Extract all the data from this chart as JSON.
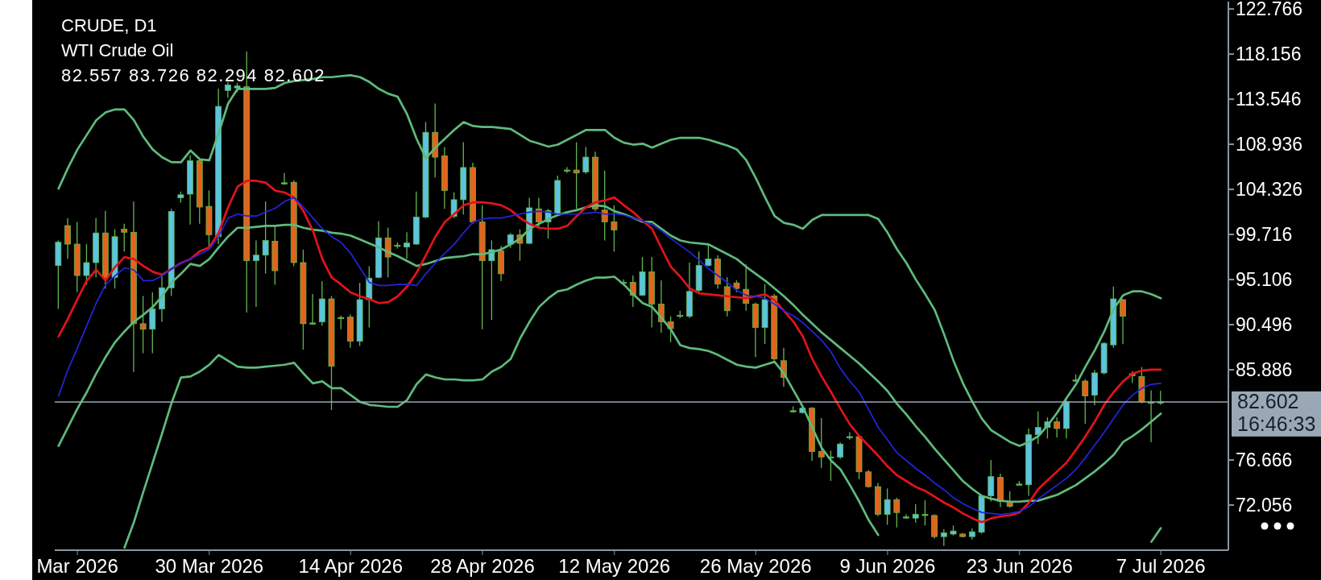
{
  "chart_data": {
    "type": "candlestick",
    "title": "CRUDE, D1",
    "subtitle": "WTI Crude Oil",
    "annotations": [
      "82.557 83.726 82.294 82.602",
      "16:46:33"
    ],
    "categories": [
      null,
      null,
      "Mar 2026",
      null,
      null,
      null,
      null,
      null,
      null,
      null,
      null,
      null,
      null,
      null,
      null,
      null,
      "30 Mar 2026",
      null,
      null,
      null,
      null,
      null,
      null,
      null,
      null,
      null,
      null,
      null,
      null,
      null,
      null,
      "14 Apr 2026",
      null,
      null,
      null,
      null,
      null,
      null,
      null,
      null,
      null,
      null,
      null,
      null,
      null,
      "28 Apr 2026",
      null,
      null,
      null,
      null,
      null,
      null,
      null,
      null,
      null,
      null,
      null,
      null,
      null,
      "12 May 2026",
      null,
      null,
      null,
      null,
      null,
      null,
      null,
      null,
      null,
      null,
      null,
      null,
      null,
      null,
      "26 May 2026",
      null,
      null,
      null,
      null,
      null,
      null,
      null,
      null,
      null,
      null,
      null,
      null,
      null,
      "9 Jun 2026",
      null,
      null,
      null,
      null,
      null,
      null,
      null,
      null,
      null,
      null,
      null,
      null,
      null,
      "23 Jun 2026",
      null,
      null,
      null,
      null,
      null,
      null,
      null,
      null,
      null,
      null,
      null,
      null,
      null,
      null,
      "7 Jul 2026"
    ],
    "ylim": [
      67.44,
      123.52
    ],
    "yticks": [
      72.056,
      76.666,
      85.886,
      90.496,
      95.106,
      99.716,
      104.326,
      108.936,
      113.546,
      118.156,
      122.766
    ],
    "color": "#62b84e",
    "colors": [
      "#5bc4de",
      "#e2641d",
      "#e2641d",
      "#5bc4de",
      "#5bc4de",
      "#e2641d",
      "#5bc4de",
      "#e2641d",
      "#e2641d",
      "#e2641d",
      "#5bc4de",
      "#5bc4de",
      "#5bc4de",
      "#5bc4de",
      "#5bc4de",
      "#e2641d",
      "#e2641d",
      "#5bc4de",
      "#5bc4de",
      "#5bc4de",
      "#e2641d",
      "#5bc4de",
      "#5bc4de",
      "#e2641d",
      "#62b84e",
      "#e2641d",
      "#e2641d",
      "#62b84e",
      "#5bc4de",
      "#e2641d",
      "#62b84e",
      "#e2641d",
      "#5bc4de",
      "#5bc4de",
      "#5bc4de",
      "#e2641d",
      "#62b84e",
      "#5bc4de",
      "#5bc4de",
      "#5bc4de",
      "#e2641d",
      "#e2641d",
      "#5bc4de",
      "#5bc4de",
      "#e2641d",
      "#e2641d",
      "#5bc4de",
      "#e2641d",
      "#5bc4de",
      "#e2641d",
      "#5bc4de",
      "#e2641d",
      "#5bc4de",
      "#5bc4de",
      "#62b84e",
      "#e2641d",
      "#5bc4de",
      "#e2641d",
      "#e2641d",
      "#e2641d",
      "#62b84e",
      "#e2641d",
      "#5bc4de",
      "#e2641d",
      "#e2641d",
      "#e2641d",
      "#62b84e",
      "#5bc4de",
      "#5bc4de",
      "#5bc4de",
      "#e2641d",
      "#e2641d",
      "#e2641d",
      "#e2641d",
      "#e2641d",
      "#5bc4de",
      "#e2641d",
      "#e2641d",
      "#62b84e",
      "#5bc4de",
      "#e2641d",
      "#e2641d",
      "#62b84e",
      "#5bc4de",
      "#62b84e",
      "#e2641d",
      "#e2641d",
      "#e2641d",
      "#5bc4de",
      "#e2641d",
      "#62b84e",
      "#5bc4de",
      "#62b84e",
      "#e2641d",
      "#5bc4de",
      "#5bc4de",
      "#e2641d",
      "#5bc4de",
      "#5bc4de",
      "#5bc4de",
      "#e2641d",
      "#e2641d",
      "#62b84e",
      "#5bc4de",
      "#5bc4de",
      "#5bc4de",
      "#e2641d",
      "#5bc4de",
      "#62b84e",
      "#e2641d",
      "#5bc4de",
      "#5bc4de",
      "#5bc4de",
      "#e2641d",
      "#e2641d",
      "#e2641d",
      "#62b84e",
      "#5bc4de"
    ],
    "ohlc": [
      [
        96.54,
        99.1,
        92.1,
        98.92
      ],
      [
        100.62,
        101.38,
        97.22,
        98.73
      ],
      [
        98.73,
        101.0,
        93.81,
        95.52
      ],
      [
        95.52,
        98.73,
        94.57,
        96.84
      ],
      [
        96.84,
        101.38,
        95.33,
        99.87
      ],
      [
        99.87,
        102.14,
        94.19,
        95.33
      ],
      [
        95.33,
        100.25,
        94.19,
        99.49
      ],
      [
        100.25,
        100.81,
        97.97,
        99.94
      ],
      [
        99.94,
        103.08,
        85.67,
        90.59
      ],
      [
        90.59,
        93.43,
        87.57,
        90.03
      ],
      [
        90.03,
        93.81,
        87.57,
        92.11
      ],
      [
        92.11,
        95.71,
        90.78,
        94.27
      ],
      [
        94.27,
        102.33,
        93.43,
        102.06
      ],
      [
        103.46,
        104.11,
        102.97,
        103.77
      ],
      [
        103.84,
        107.82,
        100.74,
        107.25
      ],
      [
        107.25,
        107.44,
        100.81,
        102.52
      ],
      [
        102.59,
        104.22,
        98.43,
        99.68
      ],
      [
        99.49,
        114.63,
        98.73,
        112.81
      ],
      [
        114.44,
        115.31,
        113.68,
        115.0
      ],
      [
        114.7,
        115.2,
        114.25,
        114.89
      ],
      [
        114.82,
        118.41,
        91.73,
        97.03
      ],
      [
        97.03,
        99.1,
        92.3,
        97.6
      ],
      [
        97.6,
        103.08,
        95.71,
        99.11
      ],
      [
        99.03,
        100.62,
        94.57,
        96.01
      ],
      [
        105.0,
        106.0,
        104.79,
        105.0
      ],
      [
        105.05,
        105.24,
        96.46,
        96.84
      ],
      [
        96.84,
        98.16,
        87.94,
        90.59
      ],
      [
        90.67,
        93.62,
        90.48,
        90.67
      ],
      [
        90.78,
        94.95,
        90.4,
        93.13
      ],
      [
        93.13,
        93.43,
        81.77,
        86.24
      ],
      [
        91.23,
        91.42,
        90.03,
        91.23
      ],
      [
        91.27,
        91.54,
        88.13,
        88.81
      ],
      [
        88.81,
        94.76,
        88.32,
        93.05
      ],
      [
        93.05,
        96.46,
        90.21,
        95.25
      ],
      [
        95.33,
        101.08,
        95.25,
        99.37
      ],
      [
        99.37,
        100.43,
        95.33,
        97.41
      ],
      [
        98.62,
        98.92,
        98.28,
        98.62
      ],
      [
        98.43,
        99.94,
        97.22,
        98.84
      ],
      [
        98.73,
        104.1,
        98.65,
        101.49
      ],
      [
        101.49,
        111.22,
        101.38,
        110.16
      ],
      [
        110.16,
        113.11,
        105.54,
        107.62
      ],
      [
        107.74,
        108.65,
        102.33,
        104.22
      ],
      [
        101.57,
        104.03,
        101.38,
        103.27
      ],
      [
        103.27,
        109.14,
        101.76,
        106.56
      ],
      [
        106.56,
        107.05,
        100.81,
        101.0
      ],
      [
        101.0,
        102.7,
        90.02,
        97.03
      ],
      [
        97.03,
        99.11,
        90.97,
        98.16
      ],
      [
        98.05,
        98.54,
        94.95,
        95.7
      ],
      [
        98.73,
        99.87,
        98.35,
        99.68
      ],
      [
        99.68,
        100.25,
        97.03,
        98.81
      ],
      [
        98.81,
        103.46,
        98.73,
        102.44
      ],
      [
        102.33,
        103.46,
        100.43,
        101.0
      ],
      [
        101.0,
        102.33,
        99.3,
        102.14
      ],
      [
        101.84,
        105.73,
        101.76,
        105.24
      ],
      [
        106.3,
        106.6,
        106.0,
        106.3
      ],
      [
        106.3,
        109.14,
        102.33,
        106.0
      ],
      [
        106.11,
        108.65,
        105.92,
        107.62
      ],
      [
        107.62,
        108.19,
        102.14,
        102.33
      ],
      [
        102.21,
        106.22,
        99.11,
        101.0
      ],
      [
        101.0,
        102.7,
        97.97,
        100.17
      ],
      [
        94.83,
        95.14,
        94.57,
        94.83
      ],
      [
        94.83,
        95.52,
        92.3,
        93.51
      ],
      [
        93.51,
        97.41,
        93.43,
        95.89
      ],
      [
        95.89,
        97.41,
        90.21,
        92.6
      ],
      [
        92.6,
        95.02,
        89.65,
        90.78
      ],
      [
        90.78,
        91.35,
        88.7,
        90.1
      ],
      [
        91.46,
        91.92,
        91.16,
        91.46
      ],
      [
        91.35,
        96.84,
        91.16,
        93.89
      ],
      [
        94.0,
        97.97,
        93.81,
        96.54
      ],
      [
        96.54,
        98.81,
        96.46,
        97.22
      ],
      [
        97.22,
        97.6,
        94.19,
        94.64
      ],
      [
        94.38,
        95.33,
        91.35,
        91.92
      ],
      [
        94.76,
        95.02,
        93.81,
        94.19
      ],
      [
        94.11,
        96.65,
        91.92,
        92.67
      ],
      [
        92.6,
        92.75,
        87.19,
        90.21
      ],
      [
        90.21,
        94.64,
        88.51,
        93.05
      ],
      [
        93.43,
        93.62,
        86.81,
        86.99
      ],
      [
        86.81,
        88.13,
        84.16,
        85.1
      ],
      [
        81.7,
        82.15,
        81.51,
        81.7
      ],
      [
        81.51,
        82.15,
        81.4,
        81.96
      ],
      [
        81.96,
        82.08,
        76.59,
        77.53
      ],
      [
        77.53,
        80.94,
        75.83,
        76.97
      ],
      [
        76.97,
        77.61,
        74.51,
        76.97
      ],
      [
        76.97,
        78.48,
        76.78,
        78.29
      ],
      [
        79.05,
        79.5,
        78.75,
        79.05
      ],
      [
        79.05,
        79.12,
        74.7,
        75.45
      ],
      [
        75.45,
        75.64,
        73.83,
        73.94
      ],
      [
        73.94,
        74.32,
        70.91,
        71.1
      ],
      [
        71.1,
        73.75,
        70.04,
        72.61
      ],
      [
        72.61,
        72.8,
        69.77,
        71.29
      ],
      [
        70.84,
        71.1,
        70.65,
        70.84
      ],
      [
        70.72,
        72.16,
        70.27,
        71.1
      ],
      [
        71.1,
        72.54,
        69.96,
        71.1
      ],
      [
        70.99,
        71.1,
        68.64,
        68.83
      ],
      [
        68.83,
        69.58,
        67.88,
        69.21
      ],
      [
        69.09,
        69.96,
        68.94,
        69.4
      ],
      [
        69.09,
        69.21,
        68.75,
        68.83
      ],
      [
        68.83,
        69.66,
        68.53,
        69.32
      ],
      [
        69.28,
        73.07,
        69.13,
        73.0
      ],
      [
        73.0,
        76.66,
        72.42,
        74.96
      ],
      [
        74.88,
        75.26,
        71.85,
        72.42
      ],
      [
        72.42,
        73.45,
        71.78,
        71.93
      ],
      [
        74.2,
        74.51,
        74.05,
        74.2
      ],
      [
        74.13,
        79.88,
        73.0,
        79.24
      ],
      [
        79.24,
        81.62,
        78.29,
        79.99
      ],
      [
        79.99,
        81.02,
        78.86,
        80.56
      ],
      [
        80.56,
        81.02,
        78.97,
        79.88
      ],
      [
        79.88,
        83.02,
        78.86,
        82.64
      ],
      [
        84.84,
        85.41,
        84.65,
        84.84
      ],
      [
        84.73,
        84.92,
        80.37,
        83.21
      ],
      [
        83.29,
        85.86,
        82.27,
        85.56
      ],
      [
        85.56,
        88.7,
        85.41,
        88.59
      ],
      [
        88.43,
        94.38,
        88.13,
        93.13
      ],
      [
        93.05,
        93.13,
        88.51,
        91.35
      ],
      [
        85.48,
        85.75,
        84.54,
        85.29
      ],
      [
        85.18,
        86.16,
        82.45,
        82.64
      ],
      [
        82.57,
        83.78,
        78.48,
        82.57
      ],
      [
        82.557,
        83.726,
        82.294,
        82.602
      ]
    ],
    "series": [
      {
        "type": "line",
        "color": "#5fba7d",
        "values": [
          104.4,
          106.5,
          108.4,
          109.9,
          111.4,
          112.2,
          112.5,
          112.5,
          111.4,
          109.7,
          108.4,
          107.6,
          107.1,
          107.1,
          108.3,
          107.4,
          107.3,
          110.1,
          113.1,
          114.6,
          114.6,
          114.6,
          114.6,
          114.7,
          115.2,
          115.4,
          115.5,
          115.6,
          115.8,
          115.8,
          115.9,
          116.0,
          115.8,
          115.3,
          114.6,
          114.1,
          113.8,
          112.0,
          109.5,
          107.5,
          108.6,
          109.5,
          110.4,
          111.2,
          110.8,
          110.7,
          110.7,
          110.6,
          110.5,
          109.9,
          109.3,
          109.0,
          108.7,
          108.9,
          109.4,
          109.9,
          110.4,
          110.4,
          110.4,
          109.6,
          109.1,
          108.9,
          109.0,
          108.6,
          109.0,
          109.4,
          109.6,
          109.6,
          109.6,
          109.4,
          109.1,
          108.8,
          108.4,
          107.3,
          105.5,
          103.5,
          101.6,
          100.9,
          100.7,
          100.3,
          101.2,
          101.7,
          101.7,
          101.7,
          101.7,
          101.7,
          101.7,
          101.3,
          99.9,
          98.2,
          96.8,
          95.1,
          93.6,
          92.0,
          89.5,
          86.8,
          84.5,
          82.6,
          80.9,
          79.7,
          79.1,
          78.5,
          78.1,
          78.5,
          79.1,
          80.2,
          81.5,
          83.0,
          84.4,
          86.2,
          87.9,
          89.8,
          92.1,
          93.5,
          93.9,
          93.9,
          93.6,
          93.2
        ]
      },
      {
        "type": "line",
        "color": "#5fba7d",
        "values": [
          78.1,
          80.0,
          81.9,
          83.6,
          85.5,
          87.2,
          88.7,
          89.8,
          90.8,
          91.5,
          92.3,
          93.4,
          94.8,
          95.7,
          96.7,
          96.5,
          97.2,
          98.4,
          99.5,
          100.4,
          100.4,
          100.5,
          100.6,
          100.6,
          100.7,
          100.7,
          100.4,
          100.2,
          100.1,
          99.9,
          99.8,
          99.6,
          99.2,
          98.8,
          98.4,
          97.9,
          97.5,
          97.0,
          96.5,
          96.7,
          97.0,
          97.3,
          97.4,
          97.5,
          97.7,
          97.7,
          97.9,
          98.2,
          98.7,
          99.3,
          100.3,
          100.8,
          101.3,
          101.7,
          102.0,
          102.2,
          102.5,
          102.7,
          102.6,
          102.1,
          101.8,
          101.4,
          101.0,
          101.0,
          100.3,
          99.6,
          99.1,
          98.9,
          98.8,
          98.7,
          98.2,
          97.7,
          97.2,
          96.4,
          95.7,
          95.0,
          94.2,
          93.4,
          92.5,
          91.5,
          90.6,
          89.7,
          88.9,
          88.1,
          87.3,
          86.5,
          85.6,
          84.7,
          83.7,
          82.4,
          81.3,
          80.1,
          79.0,
          77.8,
          76.7,
          75.6,
          74.5,
          73.7,
          73.0,
          72.7,
          72.5,
          72.4,
          72.4,
          72.5,
          72.5,
          72.8,
          73.1,
          73.6,
          74.1,
          74.8,
          75.5,
          76.3,
          77.2,
          78.5,
          79.1,
          79.8,
          80.6,
          81.4
        ]
      },
      {
        "type": "line",
        "color": "#5fba7d",
        "values": [
          null,
          null,
          null,
          null,
          null,
          null,
          null,
          67.7,
          70.3,
          73.4,
          76.4,
          79.4,
          82.5,
          85.1,
          85.2,
          85.7,
          86.4,
          87.4,
          86.8,
          86.2,
          86.1,
          86.1,
          86.2,
          86.3,
          86.4,
          86.6,
          85.5,
          84.5,
          84.7,
          84.0,
          84.0,
          83.3,
          82.6,
          82.3,
          82.2,
          82.1,
          82.1,
          82.8,
          84.4,
          85.4,
          85.1,
          84.9,
          84.9,
          84.8,
          84.8,
          84.9,
          85.7,
          86.2,
          87.0,
          89.1,
          90.8,
          92.3,
          93.2,
          93.9,
          94.1,
          94.6,
          95.0,
          95.3,
          95.3,
          95.4,
          94.6,
          93.6,
          92.7,
          92.3,
          91.2,
          90.0,
          88.4,
          88.1,
          88.0,
          87.8,
          87.4,
          86.9,
          86.4,
          86.2,
          86.1,
          86.4,
          86.7,
          85.5,
          83.8,
          82.1,
          80.0,
          77.9,
          76.6,
          75.7,
          74.1,
          72.4,
          70.5,
          69.0,
          null,
          null,
          null,
          null,
          null,
          null,
          null,
          null,
          null,
          null,
          null,
          null,
          null,
          null,
          null,
          null,
          null,
          null,
          null,
          null,
          null,
          null,
          null,
          null,
          null,
          null,
          null,
          null,
          68.3,
          69.7
        ]
      },
      {
        "type": "line",
        "color": "#e3131b",
        "values": [
          89.3,
          91.1,
          93.1,
          95.0,
          96.1,
          95.0,
          96.4,
          97.4,
          97.2,
          96.5,
          95.9,
          95.6,
          96.2,
          96.8,
          97.2,
          98.0,
          98.4,
          99.9,
          102.5,
          104.6,
          105.2,
          105.2,
          105.0,
          104.2,
          104.0,
          103.5,
          102.1,
          100.1,
          97.2,
          95.3,
          94.6,
          93.8,
          93.4,
          93.1,
          92.7,
          92.8,
          93.4,
          94.4,
          95.8,
          97.6,
          99.5,
          101.0,
          101.8,
          102.7,
          103.0,
          103.0,
          102.9,
          102.7,
          102.2,
          101.4,
          100.8,
          100.4,
          100.3,
          100.3,
          100.6,
          101.6,
          102.5,
          103.0,
          103.2,
          103.5,
          102.7,
          102.0,
          101.1,
          100.3,
          98.3,
          96.4,
          95.4,
          94.2,
          93.7,
          93.6,
          93.5,
          93.4,
          93.3,
          93.2,
          93.4,
          93.6,
          93.0,
          91.9,
          90.8,
          89.3,
          87.0,
          85.2,
          83.6,
          81.9,
          80.3,
          79.1,
          78.1,
          77.1,
          76.0,
          75.1,
          74.5,
          73.9,
          73.5,
          72.9,
          72.3,
          71.8,
          71.2,
          70.7,
          70.3,
          70.7,
          70.9,
          71.0,
          71.3,
          72.3,
          73.7,
          74.6,
          75.5,
          76.4,
          77.7,
          79.1,
          80.6,
          82.3,
          83.6,
          84.7,
          85.5,
          85.8,
          85.9,
          85.9
        ]
      },
      {
        "type": "line",
        "color": "#2424dc",
        "values": [
          83.2,
          85.9,
          88.1,
          90.4,
          92.7,
          94.6,
          95.5,
          96.3,
          96.1,
          95.0,
          95.0,
          95.5,
          96.2,
          96.8,
          97.2,
          97.7,
          98.2,
          99.5,
          101.4,
          101.8,
          101.6,
          101.6,
          102.0,
          102.4,
          103.1,
          103.5,
          102.5,
          101.4,
          100.3,
          99.5,
          98.9,
          97.8,
          96.3,
          94.8,
          94.5,
          94.5,
          94.6,
          94.6,
          94.5,
          95.7,
          96.8,
          97.8,
          98.7,
          99.9,
          101.0,
          101.3,
          101.4,
          101.4,
          101.6,
          101.8,
          102.0,
          102.1,
          102.0,
          101.8,
          101.8,
          101.8,
          101.9,
          102.0,
          101.8,
          101.8,
          101.7,
          101.4,
          101.1,
          100.7,
          100.1,
          99.3,
          98.6,
          97.9,
          97.1,
          96.2,
          95.5,
          94.8,
          94.0,
          93.5,
          93.4,
          93.2,
          92.6,
          91.9,
          91.4,
          90.7,
          89.8,
          88.9,
          87.7,
          86.0,
          84.7,
          83.6,
          81.8,
          80.0,
          78.7,
          77.4,
          76.6,
          75.8,
          75.1,
          74.3,
          73.6,
          72.8,
          72.2,
          71.7,
          71.3,
          71.2,
          71.1,
          71.2,
          71.4,
          71.9,
          72.7,
          73.4,
          74.1,
          74.8,
          75.7,
          76.9,
          78.2,
          79.5,
          80.9,
          82.3,
          83.3,
          84.0,
          84.4,
          84.5
        ]
      }
    ],
    "ref_lines": [
      {
        "axis": "y",
        "value": 82.602,
        "label": "82.602",
        "color": "#9aa8b6"
      }
    ]
  }
}
